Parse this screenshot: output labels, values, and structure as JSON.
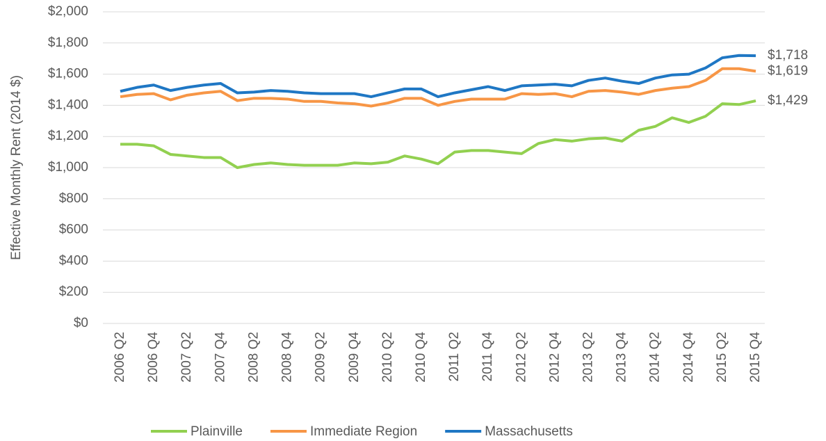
{
  "chart_data": {
    "type": "line",
    "y_label": "Effective Monthly Rent (2014 $)",
    "categories": [
      "2006 Q2",
      null,
      "2006 Q4",
      null,
      "2007 Q2",
      null,
      "2007 Q4",
      null,
      "2008 Q2",
      null,
      "2008 Q4",
      null,
      "2009 Q2",
      null,
      "2009 Q4",
      null,
      "2010 Q2",
      null,
      "2010 Q4",
      null,
      "2011 Q2",
      null,
      "2011 Q4",
      null,
      "2012 Q2",
      null,
      "2012 Q4",
      null,
      "2013 Q2",
      null,
      "2013 Q4",
      null,
      "2014 Q2",
      null,
      "2014 Q4",
      null,
      "2015 Q2",
      null,
      "2015 Q4"
    ],
    "series": [
      {
        "name": "Plainville",
        "color": "#92d050",
        "values": [
          1150,
          1150,
          1140,
          1085,
          1075,
          1065,
          1065,
          1000,
          1020,
          1030,
          1020,
          1015,
          1015,
          1015,
          1030,
          1025,
          1035,
          1075,
          1055,
          1025,
          1100,
          1110,
          1110,
          1100,
          1090,
          1155,
          1180,
          1170,
          1185,
          1190,
          1170,
          1240,
          1265,
          1320,
          1290,
          1330,
          1410,
          1405,
          1429
        ],
        "value_labels": [
          null,
          null,
          null,
          null,
          null,
          null,
          null,
          null,
          null,
          null,
          null,
          null,
          null,
          null,
          null,
          null,
          null,
          null,
          null,
          null,
          null,
          null,
          null,
          null,
          null,
          null,
          null,
          null,
          null,
          null,
          null,
          null,
          null,
          null,
          null,
          null,
          null,
          null,
          "$1,429"
        ]
      },
      {
        "name": "Immediate Region",
        "color": "#f79646",
        "values": [
          1455,
          1470,
          1475,
          1435,
          1465,
          1480,
          1490,
          1430,
          1445,
          1445,
          1440,
          1425,
          1425,
          1415,
          1410,
          1395,
          1415,
          1445,
          1445,
          1400,
          1425,
          1440,
          1440,
          1440,
          1475,
          1470,
          1475,
          1455,
          1490,
          1495,
          1485,
          1470,
          1495,
          1510,
          1520,
          1560,
          1635,
          1635,
          1619
        ],
        "value_labels": [
          null,
          null,
          null,
          null,
          null,
          null,
          null,
          null,
          null,
          null,
          null,
          null,
          null,
          null,
          null,
          null,
          null,
          null,
          null,
          null,
          null,
          null,
          null,
          null,
          null,
          null,
          null,
          null,
          null,
          null,
          null,
          null,
          null,
          null,
          null,
          null,
          null,
          null,
          "$1,619"
        ]
      },
      {
        "name": "Massachusetts",
        "color": "#1f77c4",
        "values": [
          1490,
          1515,
          1530,
          1495,
          1515,
          1530,
          1540,
          1480,
          1485,
          1495,
          1490,
          1480,
          1475,
          1475,
          1475,
          1455,
          1480,
          1505,
          1505,
          1455,
          1480,
          1500,
          1520,
          1495,
          1525,
          1530,
          1535,
          1525,
          1560,
          1575,
          1555,
          1540,
          1575,
          1595,
          1600,
          1640,
          1705,
          1720,
          1718
        ],
        "value_labels": [
          null,
          null,
          null,
          null,
          null,
          null,
          null,
          null,
          null,
          null,
          null,
          null,
          null,
          null,
          null,
          null,
          null,
          null,
          null,
          null,
          null,
          null,
          null,
          null,
          null,
          null,
          null,
          null,
          null,
          null,
          null,
          null,
          null,
          null,
          null,
          null,
          null,
          null,
          "$1,718"
        ]
      }
    ],
    "ylim": [
      0,
      2000
    ],
    "yticks": [
      {
        "value": 0,
        "label": "$0"
      },
      {
        "value": 200,
        "label": "$200"
      },
      {
        "value": 400,
        "label": "$400"
      },
      {
        "value": 600,
        "label": "$600"
      },
      {
        "value": 800,
        "label": "$800"
      },
      {
        "value": 1000,
        "label": "$1,000"
      },
      {
        "value": 1200,
        "label": "$1,200"
      },
      {
        "value": 1400,
        "label": "$1,400"
      },
      {
        "value": 1600,
        "label": "$1,600"
      },
      {
        "value": 1800,
        "label": "$1,800"
      },
      {
        "value": 2000,
        "label": "$2,000"
      }
    ],
    "grid": true,
    "legend": "bottom"
  }
}
